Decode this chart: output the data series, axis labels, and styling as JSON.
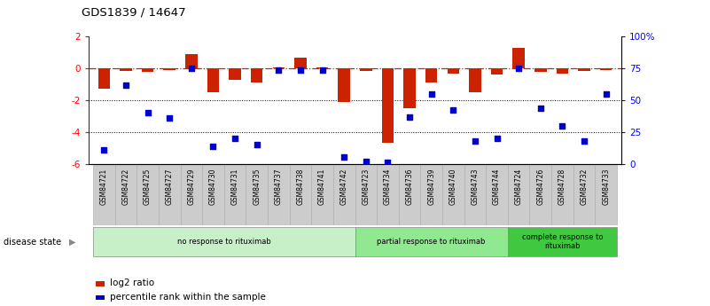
{
  "title": "GDS1839 / 14647",
  "samples": [
    "GSM84721",
    "GSM84722",
    "GSM84725",
    "GSM84727",
    "GSM84729",
    "GSM84730",
    "GSM84731",
    "GSM84735",
    "GSM84737",
    "GSM84738",
    "GSM84741",
    "GSM84742",
    "GSM84723",
    "GSM84734",
    "GSM84736",
    "GSM84739",
    "GSM84740",
    "GSM84743",
    "GSM84744",
    "GSM84724",
    "GSM84726",
    "GSM84728",
    "GSM84732",
    "GSM84733"
  ],
  "log2_ratio": [
    -1.3,
    -0.15,
    -0.2,
    -0.1,
    0.9,
    -1.5,
    -0.7,
    -0.9,
    0.05,
    0.7,
    0.05,
    -2.1,
    -0.15,
    -4.7,
    -2.5,
    -0.9,
    -0.3,
    -1.5,
    -0.4,
    1.3,
    -0.2,
    -0.35,
    -0.15,
    -0.1
  ],
  "percentile": [
    11,
    62,
    40,
    36,
    75,
    14,
    20,
    15,
    74,
    74,
    74,
    5,
    2,
    1,
    37,
    55,
    42,
    18,
    20,
    75,
    44,
    30,
    18,
    55
  ],
  "groups": [
    {
      "label": "no response to rituximab",
      "start": 0,
      "end": 12,
      "color": "#c8f0c8"
    },
    {
      "label": "partial response to rituximab",
      "start": 12,
      "end": 19,
      "color": "#90e890"
    },
    {
      "label": "complete response to\nrituximab",
      "start": 19,
      "end": 24,
      "color": "#40c840"
    }
  ],
  "bar_color": "#cc2200",
  "dot_color": "#0000cc",
  "ylim_left": [
    -6,
    2
  ],
  "ylim_right": [
    0,
    100
  ],
  "dotted_lines": [
    -2,
    -4
  ],
  "right_ticks": [
    0,
    25,
    50,
    75,
    100
  ],
  "right_labels": [
    "0",
    "25",
    "50",
    "75",
    "100%"
  ],
  "left_ticks": [
    -6,
    -4,
    -2,
    0,
    2
  ],
  "sample_box_color": "#cccccc",
  "sample_box_edge": "#aaaaaa",
  "background_color": "#ffffff",
  "legend_red_label": "log2 ratio",
  "legend_blue_label": "percentile rank within the sample",
  "disease_state_label": "disease state"
}
